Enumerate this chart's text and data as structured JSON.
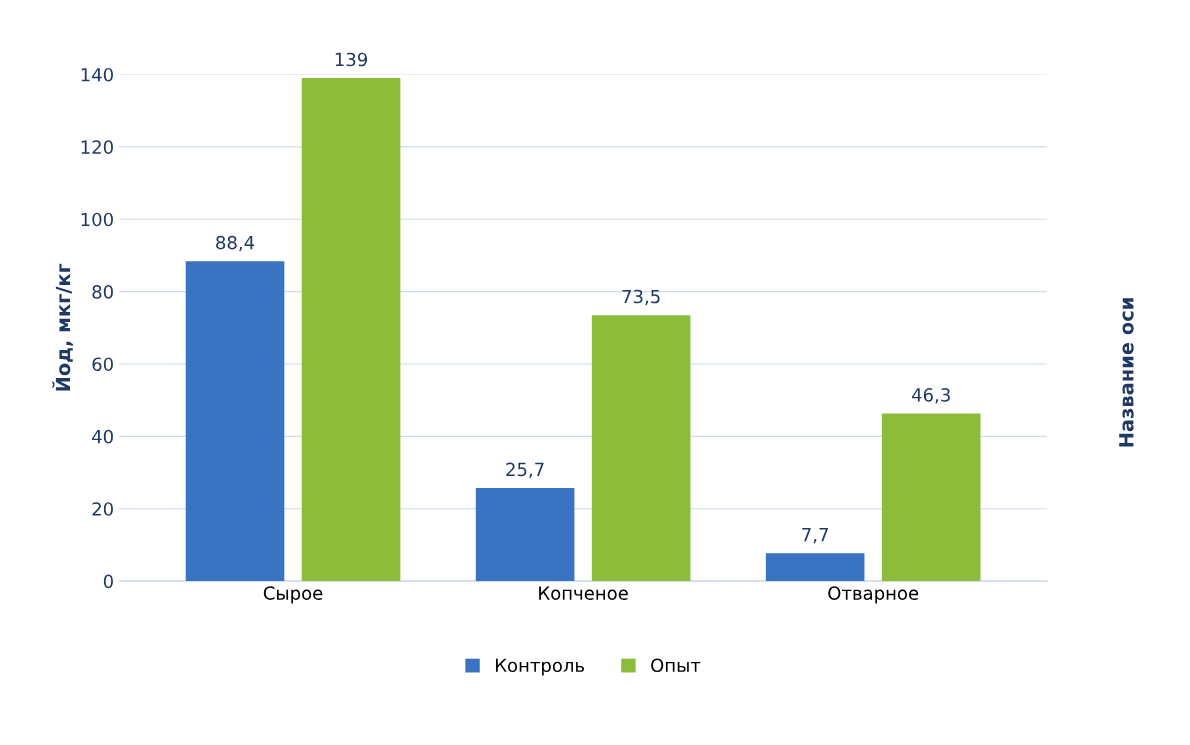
{
  "chart_data": {
    "type": "bar",
    "ylabel": "Йод, мкг/кг",
    "categories": [
      "Сырое",
      "Копченое",
      "Отварное"
    ],
    "series": [
      {
        "name": "Контроль",
        "color": "#3a73c2",
        "values": [
          88.4,
          25.7,
          7.7
        ],
        "value_labels": [
          "88,4",
          "25,7",
          "7,7"
        ]
      },
      {
        "name": "Опыт",
        "color": "#8cbd3a",
        "values": [
          139,
          73.5,
          46.3
        ],
        "value_labels": [
          "139",
          "73,5",
          "46,3"
        ]
      }
    ],
    "ylim": [
      0,
      140
    ],
    "yticks": [
      0,
      20,
      40,
      60,
      80,
      100,
      120,
      140
    ],
    "grid": "y",
    "legend": "bottom",
    "annotations": [
      "Название оси"
    ]
  }
}
